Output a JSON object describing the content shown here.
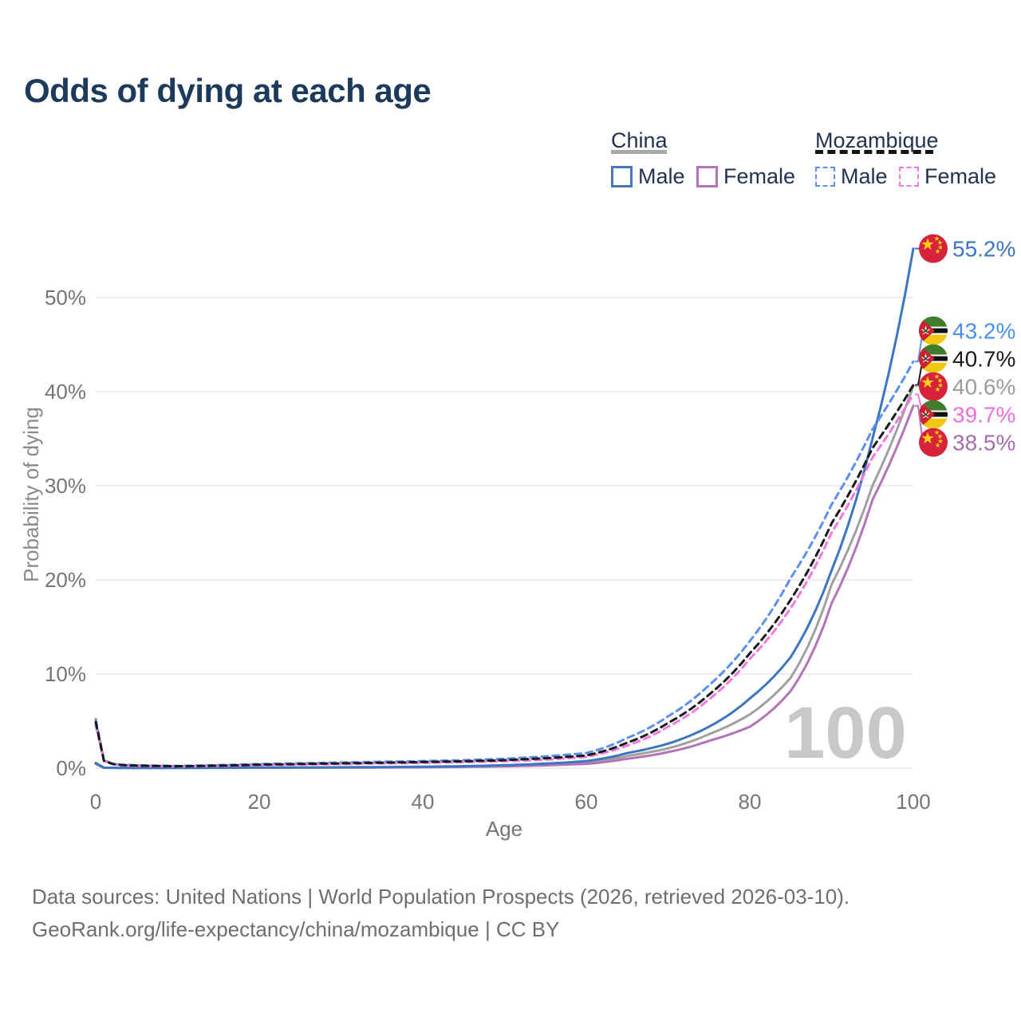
{
  "title": "Odds of dying at each age",
  "watermark": {
    "text": "100"
  },
  "legend": {
    "groups": [
      {
        "label": "China",
        "line_style": "solid",
        "line_color": "#a8a8a8",
        "items": [
          {
            "label": "Male",
            "color": "#4577be"
          },
          {
            "label": "Female",
            "color": "#b671bb"
          }
        ]
      },
      {
        "label": "Mozambique",
        "line_style": "dashed",
        "line_color": "#141414",
        "items": [
          {
            "label": "Male",
            "color": "#5a8ff0"
          },
          {
            "label": "Female",
            "color": "#f478e0"
          }
        ]
      }
    ]
  },
  "chart_data": {
    "type": "line",
    "title": "Odds of dying at each age",
    "xlabel": "Age",
    "ylabel": "Probability of dying",
    "xlim": [
      0,
      100
    ],
    "ylim_percent": [
      0,
      57
    ],
    "x_ticks": [
      0,
      20,
      40,
      60,
      80,
      100
    ],
    "y_ticks_percent": [
      0,
      10,
      20,
      30,
      40,
      50
    ],
    "grid": "horizontal",
    "hovered_age": 100,
    "ages": [
      0,
      1,
      2,
      3,
      5,
      10,
      15,
      20,
      25,
      30,
      35,
      40,
      45,
      50,
      55,
      60,
      65,
      70,
      75,
      80,
      85,
      90,
      95,
      100
    ],
    "series": [
      {
        "name": "China average",
        "country": "China",
        "sex": "both",
        "flag": "china",
        "color": "#a0a0a0",
        "dashed": false,
        "end_label": "40.6%",
        "label_color": "#9c9c9c",
        "values": [
          0.5,
          0.045,
          0.036,
          0.03,
          0.026,
          0.026,
          0.038,
          0.05,
          0.06,
          0.075,
          0.09,
          0.12,
          0.17,
          0.25,
          0.39,
          0.6,
          1.3,
          2.1,
          3.6,
          5.7,
          9.6,
          19.5,
          30,
          40.6
        ]
      },
      {
        "name": "China Female",
        "country": "China",
        "sex": "female",
        "flag": "china",
        "color": "#b273b8",
        "dashed": false,
        "end_label": "38.5%",
        "label_color": "#a76cae",
        "values": [
          0.45,
          0.04,
          0.032,
          0.027,
          0.022,
          0.022,
          0.032,
          0.04,
          0.05,
          0.06,
          0.075,
          0.095,
          0.13,
          0.19,
          0.3,
          0.46,
          1.0,
          1.7,
          2.9,
          4.4,
          8.2,
          17.5,
          28.5,
          38.5
        ]
      },
      {
        "name": "China Male",
        "country": "China",
        "sex": "male",
        "flag": "china",
        "color": "#3c76c3",
        "dashed": false,
        "end_label": "55.2%",
        "label_color": "#3a76c2",
        "values": [
          0.55,
          0.05,
          0.04,
          0.035,
          0.03,
          0.03,
          0.045,
          0.06,
          0.07,
          0.09,
          0.11,
          0.15,
          0.21,
          0.31,
          0.48,
          0.75,
          1.6,
          2.6,
          4.4,
          7.4,
          11.8,
          21,
          35,
          55.2
        ]
      },
      {
        "name": "Mozambique Male",
        "country": "Mozambique",
        "sex": "male",
        "flag": "mozambique",
        "color": "#5a8ff0",
        "dashed": true,
        "end_label": "43.2%",
        "label_color": "#4a8ff0",
        "values": [
          5.2,
          0.85,
          0.5,
          0.38,
          0.3,
          0.24,
          0.32,
          0.44,
          0.52,
          0.6,
          0.68,
          0.75,
          0.85,
          1.0,
          1.25,
          1.6,
          3.2,
          5.5,
          8.8,
          13.5,
          20.2,
          28,
          36,
          43.2
        ]
      },
      {
        "name": "Mozambique Female",
        "country": "Mozambique",
        "sex": "female",
        "flag": "mozambique",
        "color": "#f478e0",
        "dashed": true,
        "end_label": "39.7%",
        "label_color": "#f06edc",
        "values": [
          4.6,
          0.75,
          0.43,
          0.31,
          0.24,
          0.18,
          0.24,
          0.32,
          0.38,
          0.44,
          0.5,
          0.56,
          0.64,
          0.74,
          0.9,
          1.2,
          2.4,
          4.4,
          7.3,
          11.6,
          17.0,
          25,
          33,
          39.7
        ]
      },
      {
        "name": "Mozambique average",
        "country": "Mozambique",
        "sex": "both",
        "flag": "mozambique",
        "color": "#1a1a1a",
        "dashed": true,
        "end_label": "40.7%",
        "label_color": "#1a1a1a",
        "values": [
          4.9,
          0.8,
          0.46,
          0.34,
          0.27,
          0.2,
          0.27,
          0.37,
          0.44,
          0.51,
          0.58,
          0.65,
          0.73,
          0.85,
          1.05,
          1.35,
          2.7,
          4.8,
          7.8,
          12.2,
          17.9,
          26,
          34,
          40.7
        ]
      }
    ]
  },
  "footer": {
    "line1": "Data sources: United Nations | World Population Prospects (2026, retrieved 2026-03-10).",
    "line2": "GeoRank.org/life-expectancy/china/mozambique | CC BY"
  }
}
